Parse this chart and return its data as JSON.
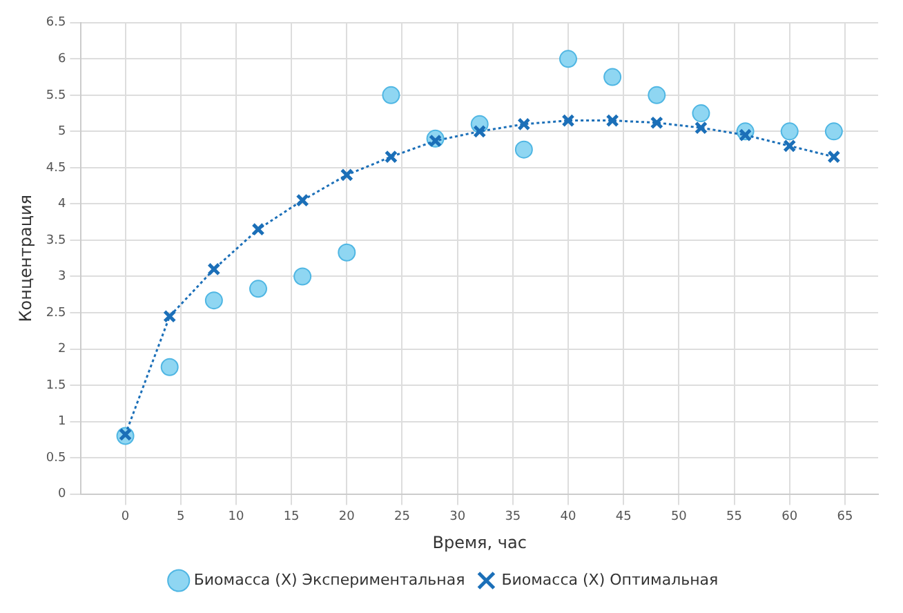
{
  "chart_data": {
    "type": "scatter",
    "xlabel": "Время, час",
    "ylabel": "Концентрация",
    "x": [
      0,
      4,
      8,
      12,
      16,
      20,
      24,
      28,
      32,
      36,
      40,
      44,
      48,
      52,
      56,
      60,
      64
    ],
    "series": [
      {
        "name": "Биомасса (X) Экспериментальная",
        "color": "#8fd6f2",
        "marker": "circle",
        "values": [
          0.8,
          1.75,
          2.67,
          2.83,
          3.0,
          3.33,
          5.5,
          4.9,
          5.1,
          4.75,
          6.0,
          5.75,
          5.5,
          5.25,
          5.0,
          5.0,
          5.0
        ]
      },
      {
        "name": "Биомасса (X) Оптимальная",
        "type": "line",
        "color": "#1b6fb8",
        "marker": "cross",
        "line_style": "dotted",
        "values": [
          0.82,
          2.45,
          3.1,
          3.65,
          4.05,
          4.4,
          4.65,
          4.87,
          5.0,
          5.1,
          5.15,
          5.15,
          5.12,
          5.05,
          4.95,
          4.8,
          4.65
        ]
      }
    ],
    "xlim": [
      -4,
      68
    ],
    "xticks": [
      0,
      5,
      10,
      15,
      20,
      25,
      30,
      35,
      40,
      45,
      50,
      55,
      60,
      65
    ],
    "ylim": [
      0,
      6.5
    ],
    "yticks": [
      0,
      0.5,
      1,
      1.5,
      2,
      2.5,
      3,
      3.5,
      4,
      4.5,
      5,
      5.5,
      6,
      6.5
    ],
    "grid": true,
    "legend": "bottom"
  }
}
